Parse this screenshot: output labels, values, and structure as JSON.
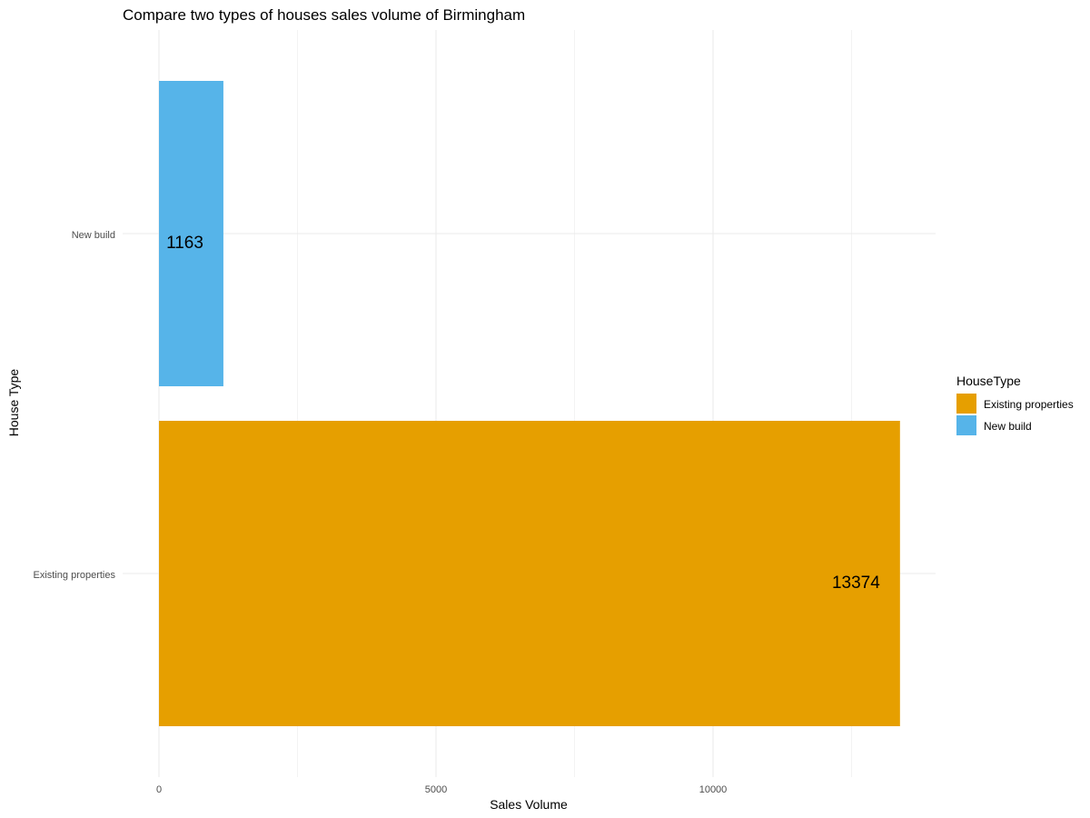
{
  "chart_data": {
    "type": "bar",
    "orientation": "horizontal",
    "title": "Compare two types of houses sales volume of Birmingham",
    "xlabel": "Sales Volume",
    "ylabel": "House Type",
    "categories": [
      "Existing properties",
      "New build"
    ],
    "values": [
      13374,
      1163
    ],
    "colors": [
      "#E69F00",
      "#56B4E9"
    ],
    "data_labels": [
      "13374",
      "1163"
    ],
    "x_ticks": [
      0,
      5000,
      10000
    ],
    "x_tick_labels": [
      "0",
      "5000",
      "10000"
    ],
    "xlim": [
      0,
      14000
    ],
    "grid": true,
    "legend": {
      "title": "HouseType",
      "position": "right",
      "entries": [
        "Existing properties",
        "New build"
      ]
    }
  }
}
